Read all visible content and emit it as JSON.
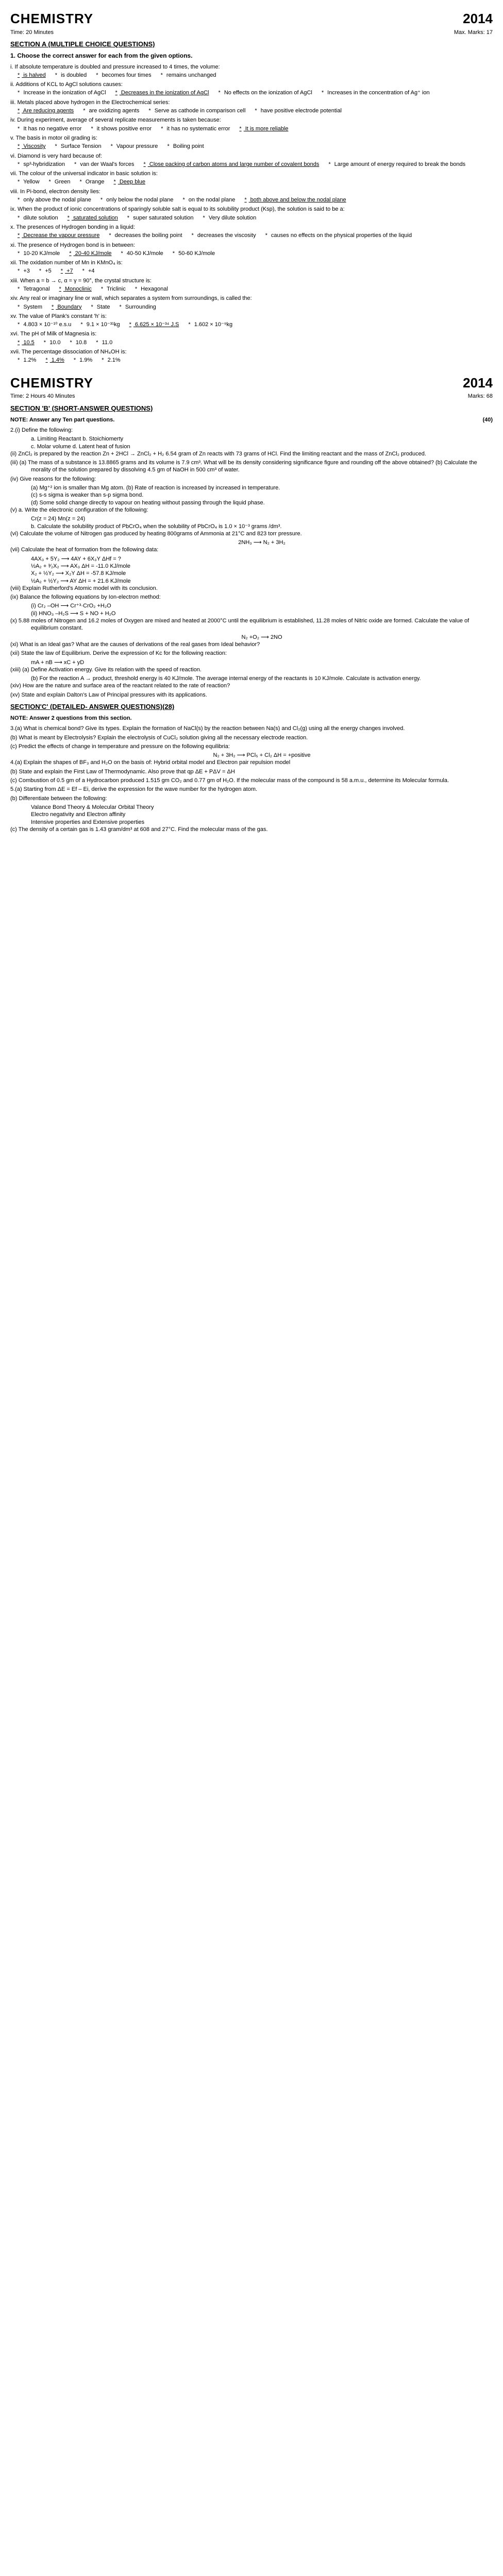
{
  "header": {
    "subject": "CHEMISTRY",
    "year": "2014",
    "timeA": "Time: 20 Minutes",
    "marksA": "Max. Marks: 17",
    "sectionA": "SECTION A (MULTIPLE CHOICE QUESTIONS)",
    "instructA": "1.   Choose the correct answer for each from the given options."
  },
  "mcq": [
    {
      "num": "i.",
      "text": "If absolute temperature is doubled and pressure increased to 4 times, the volume:",
      "opts": [
        {
          "t": "is halved",
          "u": true
        },
        {
          "t": "is doubled",
          "u": false
        },
        {
          "t": "becomes four times",
          "u": false
        },
        {
          "t": "remains unchanged",
          "u": false
        }
      ]
    },
    {
      "num": "ii.",
      "text": "Additions of KCL to AgCl solutions causes:",
      "opts": [
        {
          "t": "Increase in the ionization of AgCl",
          "u": false
        },
        {
          "t": "Decreases in the ionization of AgCl",
          "u": true
        },
        {
          "t": "No effects on the ionization of AgCl",
          "u": false
        },
        {
          "t": "Increases in the concentration of Ag⁺ ion",
          "u": false
        }
      ]
    },
    {
      "num": "iii.",
      "text": "Metals placed above hydrogen in the Electrochemical series:",
      "opts": [
        {
          "t": "Are reducing agents",
          "u": true
        },
        {
          "t": "are oxidizing agents",
          "u": false
        },
        {
          "t": "Serve as cathode in comparison cell",
          "u": false
        },
        {
          "t": "have positive electrode potential",
          "u": false
        }
      ]
    },
    {
      "num": "iv.",
      "text": "During experiment, average of several replicate measurements is taken because:",
      "opts": [
        {
          "t": "It has no negative error",
          "u": false
        },
        {
          "t": "it shows positive error",
          "u": false
        },
        {
          "t": "it has no systematic error",
          "u": false
        },
        {
          "t": "It is more reliable",
          "u": true
        }
      ]
    },
    {
      "num": "v.",
      "text": "The basis in motor oil grading is:",
      "opts": [
        {
          "t": "Viscosity",
          "u": true
        },
        {
          "t": "Surface Tension",
          "u": false
        },
        {
          "t": "Vapour pressure",
          "u": false
        },
        {
          "t": "Boiling point",
          "u": false
        }
      ]
    },
    {
      "num": "vi.",
      "text": "Diamond is very hard because of:",
      "opts": [
        {
          "t": "sp³-hybridization",
          "u": false
        },
        {
          "t": "van der Waal's forces",
          "u": false
        },
        {
          "t": "Close packing of carbon atoms and large number of covalent bonds",
          "u": true
        },
        {
          "t": "Large amount of energy required to break the bonds",
          "u": false
        }
      ]
    },
    {
      "num": "vii.",
      "text": "The colour of the universal indicator in basic solution is:",
      "opts": [
        {
          "t": "Yellow",
          "u": false
        },
        {
          "t": "Green",
          "u": false
        },
        {
          "t": "Orange",
          "u": false
        },
        {
          "t": "Deep blue",
          "u": true
        }
      ]
    },
    {
      "num": "viii.",
      "text": "In Pi-bond, electron density lies:",
      "opts": [
        {
          "t": "only above the nodal plane",
          "u": false
        },
        {
          "t": "only below the nodal plane",
          "u": false
        },
        {
          "t": "on the nodal plane",
          "u": false
        },
        {
          "t": "both above and below the nodal plane",
          "u": true
        }
      ]
    },
    {
      "num": "ix.",
      "text": "When the product of ionic concentrations of sparingly soluble salt is equal to its solubility product (Ksp), the solution is said to be a:",
      "opts": [
        {
          "t": "dilute solution",
          "u": false
        },
        {
          "t": "saturated solution",
          "u": true
        },
        {
          "t": "super saturated solution",
          "u": false
        },
        {
          "t": "Very dilute solution",
          "u": false
        }
      ]
    },
    {
      "num": "x.",
      "text": "The presences of Hydrogen bonding in a liquid:",
      "opts": [
        {
          "t": "Decrease the vapour pressure",
          "u": true
        },
        {
          "t": "decreases the boiling point",
          "u": false
        },
        {
          "t": "decreases the viscosity",
          "u": false
        },
        {
          "t": "causes no effects on the physical properties of the liquid",
          "u": false
        }
      ]
    },
    {
      "num": "xi.",
      "text": "The presence of Hydrogen bond is in between:",
      "opts": [
        {
          "t": "10-20 KJ/mole",
          "u": false
        },
        {
          "t": "20-40 KJ/mole",
          "u": true
        },
        {
          "t": "40-50 KJ/mole",
          "u": false
        },
        {
          "t": "50-60 KJ/mole",
          "u": false
        }
      ]
    },
    {
      "num": "xii.",
      "text": "The oxidation number of Mn in KMnO₄ is:",
      "opts": [
        {
          "t": "+3",
          "u": false
        },
        {
          "t": "+5",
          "u": false
        },
        {
          "t": "+7",
          "u": true
        },
        {
          "t": "+4",
          "u": false
        }
      ]
    },
    {
      "num": "xiii.",
      "text": "When a = b → c, α = γ = 90°, the crystal structure is:",
      "opts": [
        {
          "t": "Tetragonal",
          "u": false
        },
        {
          "t": "Monoclinic",
          "u": true
        },
        {
          "t": "Triclinic",
          "u": false
        },
        {
          "t": "Hexagonal",
          "u": false
        }
      ]
    },
    {
      "num": "xiv.",
      "text": "Any real or imaginary line or wall, which separates a system from surroundings, is called the:",
      "opts": [
        {
          "t": "System",
          "u": false
        },
        {
          "t": "Boundary",
          "u": true
        },
        {
          "t": "State",
          "u": false
        },
        {
          "t": "Surrounding",
          "u": false
        }
      ]
    },
    {
      "num": "xv.",
      "text": "The value of Plank's constant 'h' is:",
      "opts": [
        {
          "t": "4.803 × 10⁻¹⁰ e.s.u",
          "u": false
        },
        {
          "t": "9.1 × 10⁻³¹kg",
          "u": false
        },
        {
          "t": "6.625 × 10⁻³⁴ J.S",
          "u": true
        },
        {
          "t": "1.602 × 10⁻⁹kg",
          "u": false
        }
      ]
    },
    {
      "num": "xvi.",
      "text": "The pH of Milk of Magnesia is:",
      "opts": [
        {
          "t": "10.5",
          "u": true
        },
        {
          "t": "10.0",
          "u": false
        },
        {
          "t": "10.8",
          "u": false
        },
        {
          "t": "11.0",
          "u": false
        }
      ]
    },
    {
      "num": "xvii.",
      "text": "The percentage dissociation of NH₄OH is:",
      "opts": [
        {
          "t": "1.2%",
          "u": false
        },
        {
          "t": "1.4%",
          "u": true
        },
        {
          "t": "1.9%",
          "u": false
        },
        {
          "t": "2.1%",
          "u": false
        }
      ]
    }
  ],
  "headerB": {
    "subject": "CHEMISTRY",
    "year": "2014",
    "time": "Time: 2 Hours 40 Minutes",
    "marks": "Marks: 68",
    "section": "SECTION 'B' (SHORT-ANSWER QUESTIONS)",
    "note": "NOTE: Answer any Ten part questions.",
    "marks_inline": "(40)"
  },
  "short": {
    "q2i": "2.(i)   Define the following:",
    "q2i_opts": "a.   Limiting Reactant   b.   Stoichiomerty\nc.   Molar volume   d.   Latent heat of fusion",
    "q2ii": "(ii)   ZnCl₂ is prepared by the reaction Zn + 2HCl → ZnCl₂ + H₂ 6.54 gram of Zn reacts with 73 grams of HCl. Find the limiting reactant and the mass of ZnCl₂ produced.",
    "q2iii": "(iii)   (a)   The mass of a substance is 13.8865 grams and its volume is 7.9 cm³. What will be its density considering significance figure and rounding off the above obtained? (b)   Calculate the morality of the solution prepared by dissolving 4.5 gm of NaOH in 500 cm³ of water.",
    "q2iv": "(iv)   Give reasons for the following:",
    "q2iv_a": "(a)   Mg⁺² ion is smaller than Mg atom.   (b)   Rate of reaction is increased by increased in temperature.",
    "q2iv_c": "(c)   s-s sigma is weaker than s-p sigma bond.",
    "q2iv_d": "(d)   Some solid change directly to vapour on heating without passing through the liquid phase.",
    "q2v": "(v)   a.   Write the electronic configuration of the following:",
    "q2v_items": "Cr(z = 24)                         Mn(z = 24)",
    "q2v_b": "b.   Calculate the solubility product of PbCrO₄ when the solubility of PbCrO₄ is 1.0 × 10⁻³ grams /dm³.",
    "q2vi": "(vi)   Calculate the volume of Nitrogen gas produced by heating 800grams of Ammonia at 21°C and 823 torr pressure.",
    "q2vi_eq": "2NH₃ ⟶ N₂ + 3H₂",
    "q2vii": "(vii)   Calculate the heat of formation from the following data:",
    "q2vii_eq1": "4AX₃ + 5Y₂ ⟶ 4AY + 6X₃Y       ΔHf = ?",
    "q2vii_eq2": "    ½A₂ + ³⁄₂X₂ ⟶ AX₃               ΔH = -11.0 KJ/mole",
    "q2vii_eq3": "    X₂ + ½Y₂ ⟶ X₂Y               ΔH = -57.8 KJ/mole",
    "q2vii_eq4": "    ½A₂ + ½Y₂ ⟶ AY               ΔH = + 21.6 KJ/mole",
    "q2viii": "(viii)   Explain Rutherford's Atomic model with its conclusion.",
    "q2ix": "(ix)   Balance the following equations by Ion-electron method:",
    "q2ix_i": "(i)   Cr₂ –OH ⟶ Cr⁺³·CrO₂ +H₂O",
    "q2ix_ii": "(ii)   HNO₃ –H₂S ⟶ S + NO + H₂O",
    "q2x": "(x)   5.88 moles of Nitrogen and 16.2 moles of Oxygen are mixed and heated at 2000°C until the equilibrium is established, 11.28 moles of Nitric oxide are formed. Calculate the value of equilibrium constant.",
    "q2x_eq": "N₂ +O₂ ⟶ 2NO",
    "q2xi": "(xi)   What is an Ideal gas? What are the causes of derivations of the real gases from Ideal behavior?",
    "q2xii": "(xii)   State the law of Equilibrium. Derive the expression of Kc for the following reaction:",
    "q2xii_eq": "mA + nB ⟶ xC + yD",
    "q2xiii": "(xiii)   (a)   Define Activation energy. Give its relation with the speed of reaction.",
    "q2xiii_b": "(b)   For the reaction A → product, threshold energy is 40 KJ/mole. The average internal energy of the reactants is 10 KJ/mole. Calculate is activation energy.",
    "q2xiv": "(xiv)   How are the nature and surface area of the reactant related to the rate of reaction?",
    "q2xv": "(xv)   State and explain Dalton's Law of Principal pressures with its applications."
  },
  "secC": {
    "header": "SECTION'C' (DETAILED- ANSWER QUESTIONS)(28)",
    "note": "NOTE: Answer 2 questions from this section.",
    "q3a": "3.(a)  What is chemical bond? Give its types. Explain the formation of NaCl(s) by the reaction between Na(s) and Cl₂(g) using all the energy changes involved.",
    "q3b": "(b)   What is meant by Electrolysis? Explain the electrolysis of CuCl₂ solution giving all the necessary electrode reaction.",
    "q3c": "(c)   Predict the effects of change in temperature and pressure on the following equilibria:",
    "q3c_eq": "N₂ + 3H₂ ⟶ PCl₅ + Cl₂      ΔH = +positive",
    "q4a": "4.(a)  Explain the shapes of BF₃ and H₂O on the basis of: Hybrid orbital model and Electron pair repulsion model",
    "q4b": "(b)   State and explain the First Law of Thermodynamic. Also prove that qp ΔE + PΔV = ΔH",
    "q4c": "(c)   Combustion of 0.5 gm of a Hydrocarbon produced 1.515 gm CO₂ and 0.77 gm of H₂O. If the molecular mass of the compound is 58 a.m.u., determine its Molecular formula.",
    "q5a": "5.(a)  Starting from ΔE = Ef – Ei, derive the expression for the wave number for the hydrogen atom.",
    "q5b": "(b)   Differentiate between the following:",
    "q5b_items": "Valance Bond Theory & Molecular Orbital Theory\nElectro negativity and Electron affinity\nIntensive properties and Extensive properties",
    "q5c": "(c)   The density of a certain gas is 1.43 gram/dm³ at 608 and 27°C. Find the molecular mass of the gas."
  }
}
